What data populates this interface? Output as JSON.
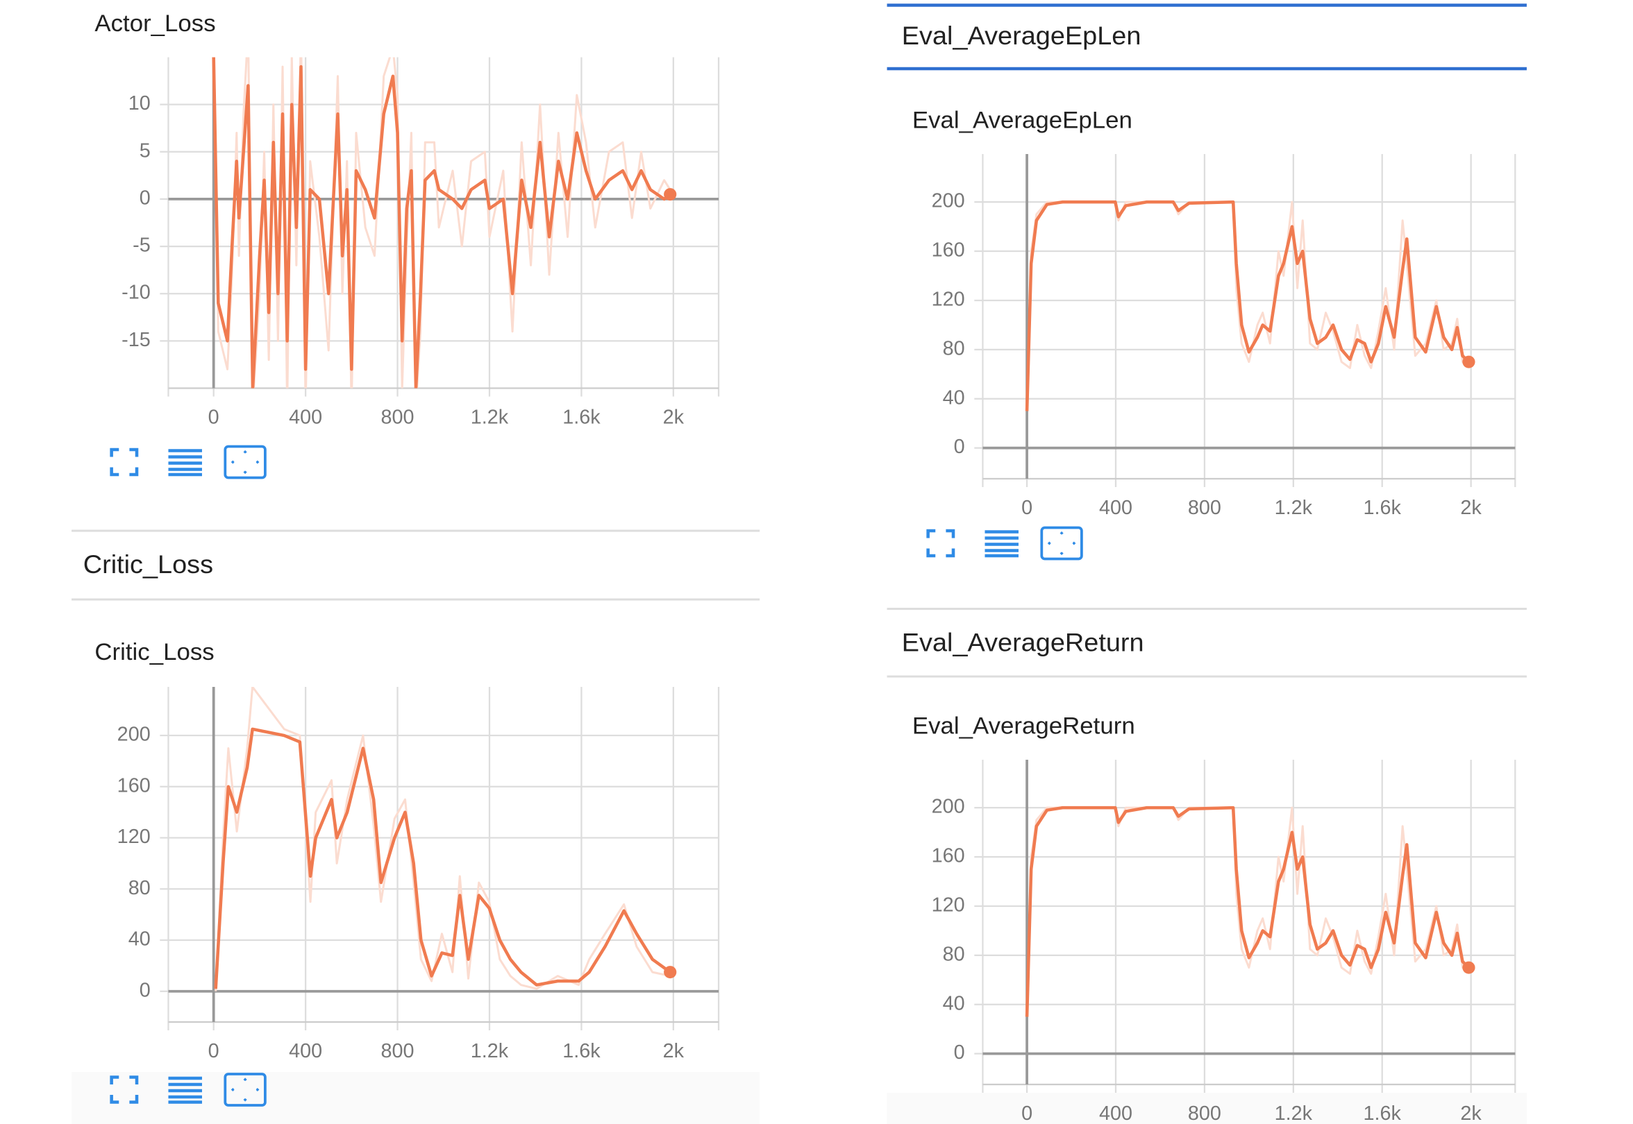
{
  "sections": [
    "Eval_AverageEpLen",
    "Critic_Loss",
    "Eval_AverageReturn"
  ],
  "chart_data": [
    {
      "type": "line",
      "title": "Actor_Loss",
      "x": [
        0,
        20,
        60,
        80,
        100,
        110,
        130,
        150,
        170,
        200,
        220,
        240,
        260,
        280,
        300,
        320,
        340,
        360,
        380,
        400,
        420,
        460,
        500,
        540,
        560,
        580,
        600,
        620,
        660,
        700,
        740,
        780,
        800,
        820,
        840,
        860,
        880,
        900,
        920,
        960,
        980,
        1040,
        1080,
        1120,
        1180,
        1200,
        1260,
        1300,
        1340,
        1380,
        1420,
        1460,
        1500,
        1540,
        1580,
        1620,
        1660,
        1720,
        1780,
        1820,
        1860,
        1900,
        1960,
        1986
      ],
      "series": [
        {
          "color": "#fbdcd0",
          "values": [
            18,
            -14,
            -18,
            -8,
            7,
            -6,
            9,
            18,
            -22,
            -10,
            5,
            -17,
            10,
            -15,
            14,
            -22,
            15,
            -7,
            18,
            -22,
            4,
            -4,
            -16,
            13,
            -10,
            4,
            -22,
            7,
            -3,
            -6,
            13,
            16,
            11,
            -20,
            -5,
            7,
            -22,
            -14,
            6,
            6,
            -3,
            3,
            -5,
            4,
            5,
            -4,
            3,
            -14,
            6,
            -7,
            10,
            -8,
            7,
            -4,
            11,
            6,
            -3,
            5,
            6,
            -2,
            5,
            -1,
            2,
            1
          ]
        },
        {
          "color": "#f07b50",
          "values": [
            15,
            -11,
            -15,
            -5,
            4,
            -2,
            5,
            12,
            -20,
            -6,
            2,
            -12,
            6,
            -10,
            9,
            -15,
            10,
            -3,
            14,
            -18,
            1,
            0,
            -10,
            9,
            -6,
            1,
            -18,
            3,
            1,
            -2,
            9,
            13,
            7,
            -15,
            -1,
            3,
            -20,
            -10,
            2,
            3,
            1,
            0,
            -1,
            1,
            2,
            -1,
            0,
            -10,
            2,
            -3,
            6,
            -4,
            4,
            0,
            7,
            3,
            0,
            2,
            3,
            1,
            3,
            1,
            0,
            0.5
          ]
        }
      ],
      "xlim": [
        -197,
        2197
      ],
      "xticks": [
        0,
        400,
        800,
        {
          "value": 1200,
          "label": "1.2k"
        },
        {
          "value": 1600,
          "label": "1.6k"
        },
        {
          "value": 2000,
          "label": "2k"
        }
      ],
      "ylim": [
        -20,
        15
      ],
      "yticks": [
        -15,
        -10,
        -5,
        0,
        5,
        10
      ],
      "grid": true
    },
    {
      "type": "line",
      "title": "Critic_Loss",
      "x": [
        9,
        41,
        64,
        101,
        146,
        169,
        307,
        375,
        421,
        444,
        513,
        536,
        581,
        650,
        696,
        728,
        787,
        833,
        870,
        902,
        948,
        993,
        1039,
        1071,
        1108,
        1154,
        1199,
        1245,
        1291,
        1337,
        1405,
        1497,
        1588,
        1634,
        1703,
        1785,
        1840,
        1909,
        1986
      ],
      "series": [
        {
          "color": "#fbdcd0",
          "values": [
            0,
            120,
            190,
            125,
            190,
            238,
            205,
            200,
            70,
            140,
            165,
            100,
            150,
            200,
            130,
            70,
            135,
            150,
            85,
            25,
            8,
            45,
            15,
            90,
            10,
            85,
            70,
            25,
            12,
            5,
            2,
            12,
            5,
            25,
            45,
            68,
            35,
            15,
            12
          ]
        },
        {
          "color": "#f07b50",
          "values": [
            2,
            100,
            160,
            140,
            175,
            205,
            200,
            195,
            90,
            120,
            150,
            120,
            140,
            190,
            150,
            85,
            120,
            140,
            100,
            40,
            12,
            30,
            28,
            75,
            25,
            75,
            65,
            40,
            25,
            15,
            5,
            8,
            8,
            15,
            35,
            63,
            45,
            25,
            15
          ]
        }
      ],
      "xlim": [
        -197,
        2197
      ],
      "xticks": [
        0,
        400,
        800,
        {
          "value": 1200,
          "label": "1.2k"
        },
        {
          "value": 1600,
          "label": "1.6k"
        },
        {
          "value": 2000,
          "label": "2k"
        }
      ],
      "ylim": [
        -24,
        238
      ],
      "yticks": [
        0,
        40,
        80,
        120,
        160,
        200
      ],
      "grid": true
    },
    {
      "type": "line",
      "title": "Eval_AverageEpLen",
      "x": [
        0,
        19,
        43,
        90,
        161,
        398,
        412,
        445,
        540,
        659,
        682,
        730,
        929,
        943,
        967,
        1000,
        1038,
        1062,
        1095,
        1133,
        1156,
        1194,
        1218,
        1242,
        1275,
        1308,
        1346,
        1379,
        1417,
        1455,
        1488,
        1521,
        1550,
        1583,
        1616,
        1654,
        1692,
        1711,
        1749,
        1796,
        1844,
        1877,
        1914,
        1938,
        1962,
        1990
      ],
      "series": [
        {
          "color": "#fbdcd0",
          "values": [
            30,
            160,
            190,
            200,
            200,
            200,
            185,
            200,
            200,
            200,
            190,
            200,
            200,
            130,
            85,
            70,
            100,
            110,
            85,
            160,
            140,
            200,
            130,
            185,
            85,
            80,
            110,
            95,
            70,
            65,
            100,
            75,
            65,
            95,
            130,
            80,
            185,
            150,
            75,
            85,
            120,
            80,
            85,
            105,
            70,
            70
          ]
        },
        {
          "color": "#f07b50",
          "values": [
            30,
            150,
            185,
            198,
            200,
            200,
            188,
            197,
            200,
            200,
            193,
            199,
            200,
            150,
            100,
            78,
            90,
            100,
            95,
            140,
            150,
            180,
            150,
            160,
            105,
            85,
            90,
            100,
            80,
            72,
            88,
            85,
            70,
            85,
            115,
            90,
            145,
            170,
            90,
            78,
            115,
            90,
            80,
            98,
            75,
            70
          ]
        }
      ],
      "xlim": [
        -199,
        2199
      ],
      "xticks": [
        0,
        400,
        800,
        {
          "value": 1200,
          "label": "1.2k"
        },
        {
          "value": 1600,
          "label": "1.6k"
        },
        {
          "value": 2000,
          "label": "2k"
        }
      ],
      "ylim": [
        -25,
        239
      ],
      "yticks": [
        0,
        40,
        80,
        120,
        160,
        200
      ],
      "grid": true
    },
    {
      "type": "line",
      "title": "Eval_AverageReturn",
      "x": [
        0,
        19,
        43,
        90,
        161,
        398,
        412,
        445,
        540,
        659,
        682,
        730,
        929,
        943,
        967,
        1000,
        1038,
        1062,
        1095,
        1133,
        1156,
        1194,
        1218,
        1242,
        1275,
        1308,
        1346,
        1379,
        1417,
        1455,
        1488,
        1521,
        1550,
        1583,
        1616,
        1654,
        1692,
        1711,
        1749,
        1796,
        1844,
        1877,
        1914,
        1938,
        1962,
        1990
      ],
      "series": [
        {
          "color": "#fbdcd0",
          "values": [
            30,
            160,
            190,
            200,
            200,
            200,
            185,
            200,
            200,
            200,
            190,
            200,
            200,
            130,
            85,
            70,
            100,
            110,
            85,
            160,
            140,
            200,
            130,
            185,
            85,
            80,
            110,
            95,
            70,
            65,
            100,
            75,
            65,
            95,
            130,
            80,
            185,
            150,
            75,
            85,
            120,
            80,
            85,
            105,
            70,
            70
          ]
        },
        {
          "color": "#f07b50",
          "values": [
            30,
            150,
            185,
            198,
            200,
            200,
            188,
            197,
            200,
            200,
            193,
            199,
            200,
            150,
            100,
            78,
            90,
            100,
            95,
            140,
            150,
            180,
            150,
            160,
            105,
            85,
            90,
            100,
            80,
            72,
            88,
            85,
            70,
            85,
            115,
            90,
            145,
            170,
            90,
            78,
            115,
            90,
            80,
            98,
            75,
            70
          ]
        }
      ],
      "xlim": [
        -199,
        2199
      ],
      "xticks": [
        0,
        400,
        800,
        {
          "value": 1200,
          "label": "1.2k"
        },
        {
          "value": 1600,
          "label": "1.6k"
        },
        {
          "value": 2000,
          "label": "2k"
        }
      ],
      "ylim": [
        -25,
        239
      ],
      "yticks": [
        0,
        40,
        80,
        120,
        160,
        200
      ],
      "grid": true
    }
  ]
}
